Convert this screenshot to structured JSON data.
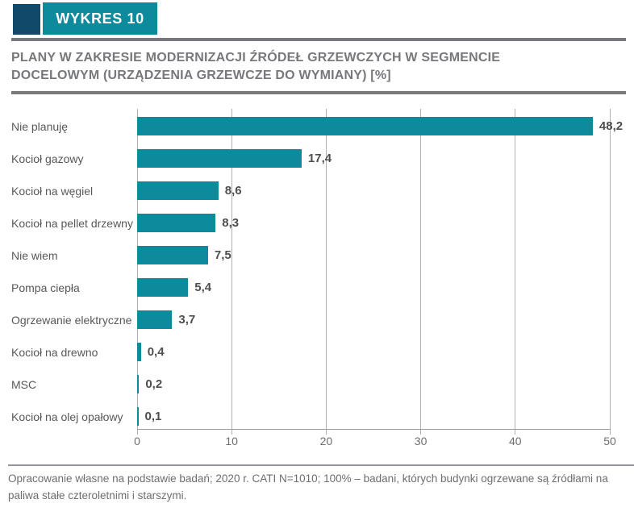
{
  "header": {
    "badge_label": "WYKRES 10"
  },
  "title": "PLANY W ZAKRESIE MODERNIZACJI ŹRÓDEŁ GRZEWCZYCH W SEGMENCIE DOCELOWYM (URZĄDZENIA GRZEWCZE DO WYMIANY) [%]",
  "footer": "Opracowanie własne na podstawie badań; 2020 r. CATI N=1010; 100% – badani, których budynki ogrzewane są źródłami na paliwa stałe czteroletnimi i starszymi.",
  "colors": {
    "navy": "#11496a",
    "teal": "#0e8a9d",
    "divider_gray": "#77787b",
    "grid_gray": "#b0b1b3",
    "axis_gray": "#9b9c9e",
    "category_text": "#57585b",
    "value_text": "#4d4e50",
    "tick_text": "#6d6e71",
    "footer_text": "#6d6e71"
  },
  "chart_data": {
    "type": "bar",
    "orientation": "horizontal",
    "title": "PLANY W ZAKRESIE MODERNIZACJI ŹRÓDEŁ GRZEWCZYCH W SEGMENCIE DOCELOWYM (URZĄDZENIA GRZEWCZE DO WYMIANY) [%]",
    "categories": [
      "Nie planuję",
      "Kocioł gazowy",
      "Kocioł na węgiel",
      "Kocioł na pellet drzewny",
      "Nie wiem",
      "Pompa ciepła",
      "Ogrzewanie elektryczne",
      "Kocioł na drewno",
      "MSC",
      "Kocioł na olej opałowy"
    ],
    "values": [
      48.2,
      17.4,
      8.6,
      8.3,
      7.5,
      5.4,
      3.7,
      0.4,
      0.2,
      0.1
    ],
    "value_labels": [
      "48,2",
      "17,4",
      "8,6",
      "8,3",
      "7,5",
      "5,4",
      "3,7",
      "0,4",
      "0,2",
      "0,1"
    ],
    "xlim": [
      0,
      50
    ],
    "x_ticks": [
      0,
      10,
      20,
      30,
      40,
      50
    ],
    "x_tick_labels": [
      "0",
      "10",
      "20",
      "30",
      "40",
      "50"
    ],
    "grid": "vertical",
    "bar_color": "#0e8a9d",
    "legend": "none"
  }
}
